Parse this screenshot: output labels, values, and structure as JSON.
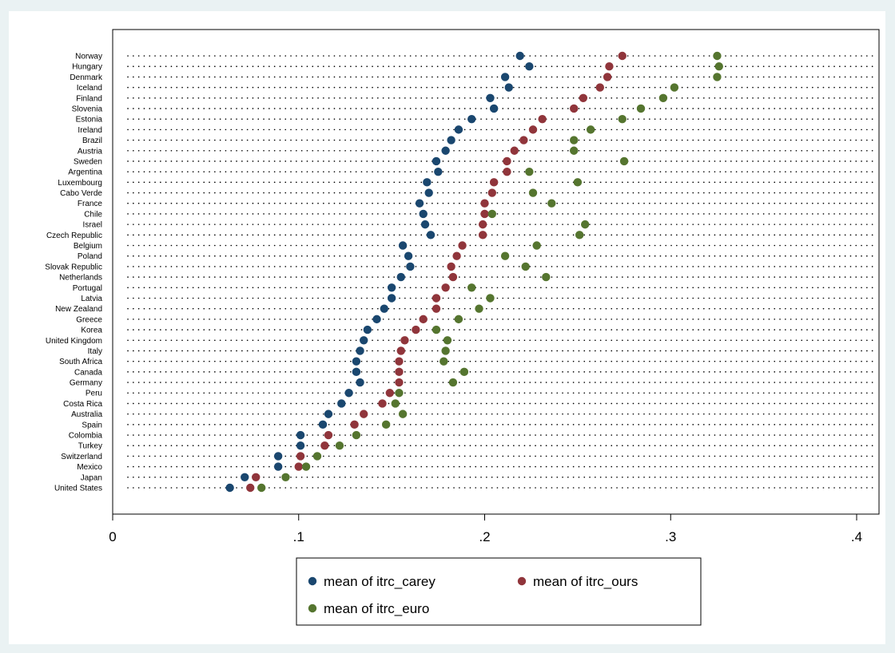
{
  "chart_data": {
    "type": "dot",
    "title": "",
    "xlabel": "",
    "ylabel": "",
    "xlim": [
      0,
      0.4
    ],
    "x_ticks": [
      0,
      0.1,
      0.2,
      0.3,
      0.4
    ],
    "x_tick_labels": [
      "0",
      ".1",
      ".2",
      ".3",
      ".4"
    ],
    "grid": "dotted guide lines per category",
    "legend_position": "bottom",
    "categories": [
      "Norway",
      "Hungary",
      "Denmark",
      "Iceland",
      "Finland",
      "Slovenia",
      "Estonia",
      "Ireland",
      "Brazil",
      "Austria",
      "Sweden",
      "Argentina",
      "Luxembourg",
      "Cabo Verde",
      "France",
      "Chile",
      "Israel",
      "Czech Republic",
      "Belgium",
      "Poland",
      "Slovak Republic",
      "Netherlands",
      "Portugal",
      "Latvia",
      "New Zealand",
      "Greece",
      "Korea",
      "United Kingdom",
      "Italy",
      "South Africa",
      "Canada",
      "Germany",
      "Peru",
      "Costa Rica",
      "Australia",
      "Spain",
      "Colombia",
      "Turkey",
      "Switzerland",
      "Mexico",
      "Japan",
      "United States"
    ],
    "series": [
      {
        "name": "mean of itrc_carey",
        "color": "#1a476f",
        "values": [
          0.219,
          0.224,
          0.211,
          0.213,
          0.203,
          0.205,
          0.193,
          0.186,
          0.182,
          0.179,
          0.174,
          0.175,
          0.169,
          0.17,
          0.165,
          0.167,
          0.168,
          0.171,
          0.156,
          0.159,
          0.16,
          0.155,
          0.15,
          0.15,
          0.146,
          0.142,
          0.137,
          0.135,
          0.133,
          0.131,
          0.131,
          0.133,
          0.127,
          0.123,
          0.116,
          0.113,
          0.101,
          0.101,
          0.089,
          0.089,
          0.071,
          0.063
        ]
      },
      {
        "name": "mean of itrc_ours",
        "color": "#90353b",
        "values": [
          0.274,
          0.267,
          0.266,
          0.262,
          0.253,
          0.248,
          0.231,
          0.226,
          0.221,
          0.216,
          0.212,
          0.212,
          0.205,
          0.204,
          0.2,
          0.2,
          0.199,
          0.199,
          0.188,
          0.185,
          0.182,
          0.183,
          0.179,
          0.174,
          0.174,
          0.167,
          0.163,
          0.157,
          0.155,
          0.154,
          0.154,
          0.154,
          0.149,
          0.145,
          0.135,
          0.13,
          0.116,
          0.114,
          0.101,
          0.1,
          0.077,
          0.074
        ]
      },
      {
        "name": "mean of itrc_euro",
        "color": "#55752f",
        "values": [
          0.325,
          0.326,
          0.325,
          0.302,
          0.296,
          0.284,
          0.274,
          0.257,
          0.248,
          0.248,
          0.275,
          0.224,
          0.25,
          0.226,
          0.236,
          0.204,
          0.254,
          0.251,
          0.228,
          0.211,
          0.222,
          0.233,
          0.193,
          0.203,
          0.197,
          0.186,
          0.174,
          0.18,
          0.179,
          0.178,
          0.189,
          0.183,
          0.154,
          0.152,
          0.156,
          0.147,
          0.131,
          0.122,
          0.11,
          0.104,
          0.093,
          0.08
        ]
      }
    ]
  }
}
